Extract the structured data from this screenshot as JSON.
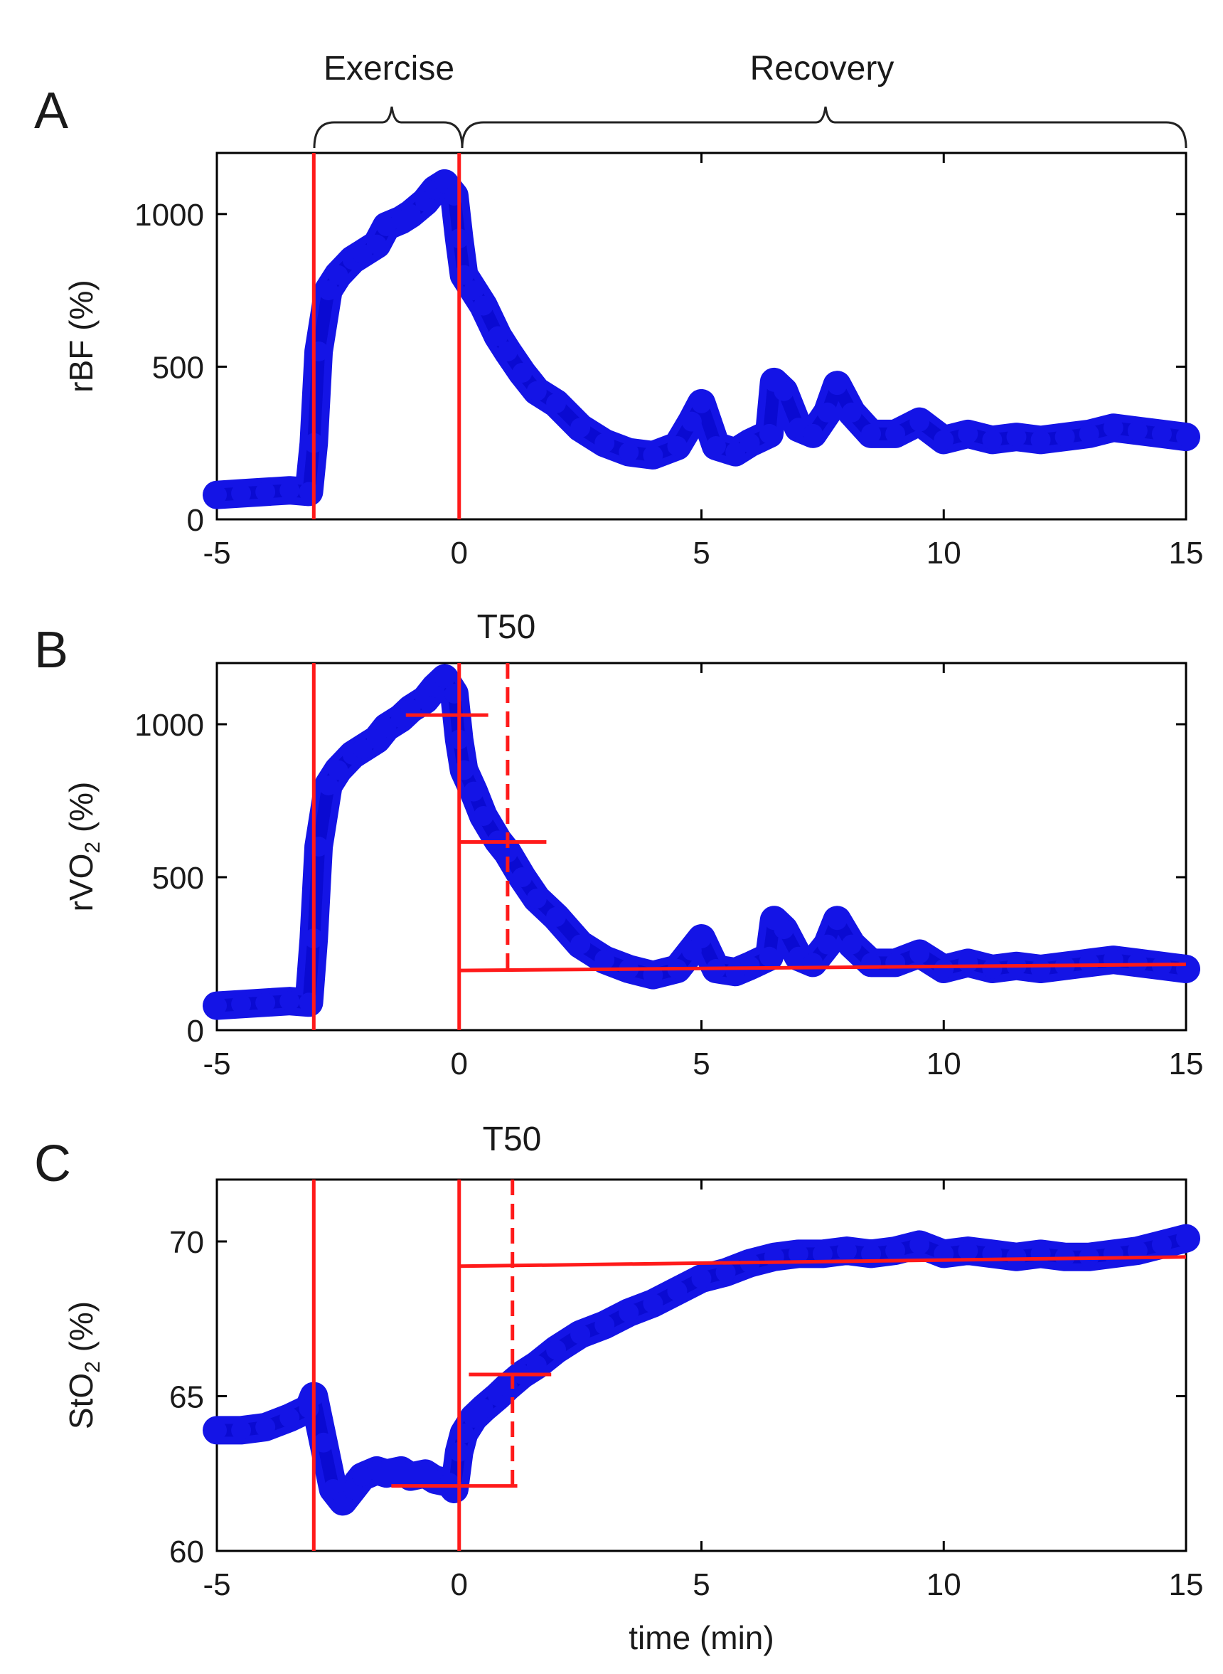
{
  "figure": {
    "phase_labels": [
      "Exercise",
      "Recovery"
    ],
    "phase_ranges_min": [
      [
        -3,
        0
      ],
      [
        0,
        15
      ]
    ]
  },
  "colors": {
    "data": "#1414e6",
    "fit": "#ff1a1a",
    "axis": "#000000",
    "text": "#1a1a1a"
  },
  "chart_data": [
    {
      "type": "scatter",
      "panel": "A",
      "title": "",
      "xlabel": "",
      "ylabel": "rBF (%)",
      "xlim": [
        -5,
        15
      ],
      "ylim": [
        0,
        1200
      ],
      "xticks": [
        -5,
        0,
        5,
        10,
        15
      ],
      "xtick_labels": [
        "-5",
        "0",
        "5",
        "10",
        "15"
      ],
      "yticks": [
        0,
        500,
        1000
      ],
      "ytick_labels": [
        "0",
        "500",
        "1000"
      ],
      "series": [
        {
          "name": "rBF",
          "x": [
            -5,
            -4.5,
            -4,
            -3.5,
            -3.1,
            -3,
            -2.9,
            -2.7,
            -2.5,
            -2.2,
            -2,
            -1.7,
            -1.5,
            -1.2,
            -1,
            -0.7,
            -0.5,
            -0.3,
            -0.1,
            0,
            0.1,
            0.3,
            0.5,
            0.8,
            1,
            1.3,
            1.6,
            2,
            2.5,
            3,
            3.5,
            4,
            4.5,
            4.8,
            5,
            5.3,
            5.7,
            6,
            6.4,
            6.5,
            6.7,
            7,
            7.3,
            7.6,
            7.8,
            8.1,
            8.5,
            9,
            9.5,
            10,
            10.5,
            11,
            11.5,
            12,
            12.5,
            13,
            13.5,
            14,
            14.5,
            15
          ],
          "y": [
            80,
            85,
            90,
            95,
            90,
            250,
            550,
            750,
            800,
            850,
            870,
            900,
            960,
            980,
            1000,
            1040,
            1080,
            1100,
            1060,
            920,
            800,
            750,
            700,
            600,
            550,
            480,
            420,
            380,
            300,
            250,
            220,
            210,
            240,
            320,
            380,
            240,
            220,
            250,
            280,
            450,
            420,
            300,
            280,
            350,
            440,
            350,
            280,
            280,
            320,
            260,
            280,
            260,
            270,
            260,
            270,
            280,
            300,
            290,
            280,
            270
          ]
        }
      ],
      "markers": [
        {
          "kind": "vline",
          "x": 0
        }
      ],
      "annotations": []
    },
    {
      "type": "scatter",
      "panel": "B",
      "title": "",
      "xlabel": "",
      "ylabel": "rVO2 (%)",
      "xlim": [
        -5,
        15
      ],
      "ylim": [
        0,
        1200
      ],
      "xticks": [
        -5,
        0,
        5,
        10,
        15
      ],
      "xtick_labels": [
        "-5",
        "0",
        "5",
        "10",
        "15"
      ],
      "yticks": [
        0,
        500,
        1000
      ],
      "ytick_labels": [
        "0",
        "500",
        "1000"
      ],
      "series": [
        {
          "name": "rVO2",
          "x": [
            -5,
            -4.5,
            -4,
            -3.5,
            -3.1,
            -3,
            -2.9,
            -2.7,
            -2.5,
            -2.2,
            -2,
            -1.7,
            -1.5,
            -1.2,
            -1,
            -0.7,
            -0.5,
            -0.3,
            -0.1,
            0,
            0.1,
            0.3,
            0.5,
            0.8,
            1,
            1.3,
            1.6,
            2,
            2.5,
            3,
            3.5,
            4,
            4.5,
            4.8,
            5,
            5.3,
            5.7,
            6,
            6.4,
            6.5,
            6.7,
            7,
            7.3,
            7.6,
            7.8,
            8.1,
            8.5,
            9,
            9.5,
            10,
            10.5,
            11,
            11.5,
            12,
            12.5,
            13,
            13.5,
            14,
            14.5,
            15
          ],
          "y": [
            80,
            85,
            90,
            95,
            90,
            300,
            600,
            800,
            850,
            900,
            920,
            950,
            990,
            1020,
            1050,
            1080,
            1120,
            1150,
            1100,
            950,
            850,
            780,
            700,
            620,
            580,
            500,
            430,
            370,
            280,
            230,
            200,
            180,
            200,
            260,
            300,
            200,
            190,
            210,
            240,
            360,
            330,
            240,
            220,
            280,
            360,
            280,
            220,
            220,
            250,
            200,
            220,
            200,
            210,
            200,
            210,
            220,
            230,
            220,
            210,
            200
          ]
        }
      ],
      "markers": [
        {
          "kind": "vline",
          "x": 0
        },
        {
          "kind": "vline_dashed",
          "x": 1
        },
        {
          "kind": "baseline",
          "x": [
            0,
            15
          ],
          "y": [
            195,
            215
          ]
        },
        {
          "kind": "hline_segment",
          "x": [
            -1.1,
            0.6
          ],
          "y": 1030
        },
        {
          "kind": "hline_segment",
          "x": [
            0,
            1.8
          ],
          "y": 615
        }
      ],
      "annotations": [
        "T50"
      ]
    },
    {
      "type": "scatter",
      "panel": "C",
      "title": "",
      "xlabel": "time (min)",
      "ylabel": "StO2 (%)",
      "xlim": [
        -5,
        15
      ],
      "ylim": [
        60,
        72
      ],
      "xticks": [
        -5,
        0,
        5,
        10,
        15
      ],
      "xtick_labels": [
        "-5",
        "0",
        "5",
        "10",
        "15"
      ],
      "yticks": [
        60,
        65,
        70
      ],
      "ytick_labels": [
        "60",
        "65",
        "70"
      ],
      "series": [
        {
          "name": "StO2",
          "x": [
            -5,
            -4.5,
            -4,
            -3.5,
            -3.1,
            -3,
            -2.8,
            -2.6,
            -2.4,
            -2.2,
            -2,
            -1.7,
            -1.5,
            -1.2,
            -1,
            -0.7,
            -0.5,
            -0.2,
            -0.1,
            0,
            0.1,
            0.3,
            0.5,
            0.8,
            1,
            1.3,
            1.6,
            2,
            2.5,
            3,
            3.5,
            4,
            4.5,
            5,
            5.5,
            6,
            6.5,
            7,
            7.5,
            8,
            8.5,
            9,
            9.5,
            10,
            10.5,
            11,
            11.5,
            12,
            12.5,
            13,
            13.5,
            14,
            14.5,
            15
          ],
          "y": [
            63.9,
            63.9,
            64,
            64.3,
            64.6,
            65,
            63.5,
            62,
            61.6,
            62,
            62.4,
            62.6,
            62.5,
            62.6,
            62.4,
            62.5,
            62.3,
            62.2,
            62,
            63.2,
            63.8,
            64.3,
            64.6,
            65,
            65.3,
            65.7,
            66,
            66.5,
            67,
            67.3,
            67.7,
            68,
            68.4,
            68.8,
            69,
            69.3,
            69.5,
            69.6,
            69.6,
            69.7,
            69.6,
            69.7,
            69.9,
            69.6,
            69.7,
            69.6,
            69.5,
            69.6,
            69.5,
            69.5,
            69.6,
            69.7,
            69.9,
            70.1
          ]
        }
      ],
      "markers": [
        {
          "kind": "vline",
          "x": 0
        },
        {
          "kind": "vline_dashed",
          "x": 1.1
        },
        {
          "kind": "baseline",
          "x": [
            0,
            15
          ],
          "y": [
            69.2,
            69.5
          ]
        },
        {
          "kind": "hline_segment",
          "x": [
            -1.4,
            1.2
          ],
          "y": 62.1
        },
        {
          "kind": "hline_segment",
          "x": [
            0.2,
            1.9
          ],
          "y": 65.7
        }
      ],
      "annotations": [
        "T50"
      ]
    }
  ]
}
